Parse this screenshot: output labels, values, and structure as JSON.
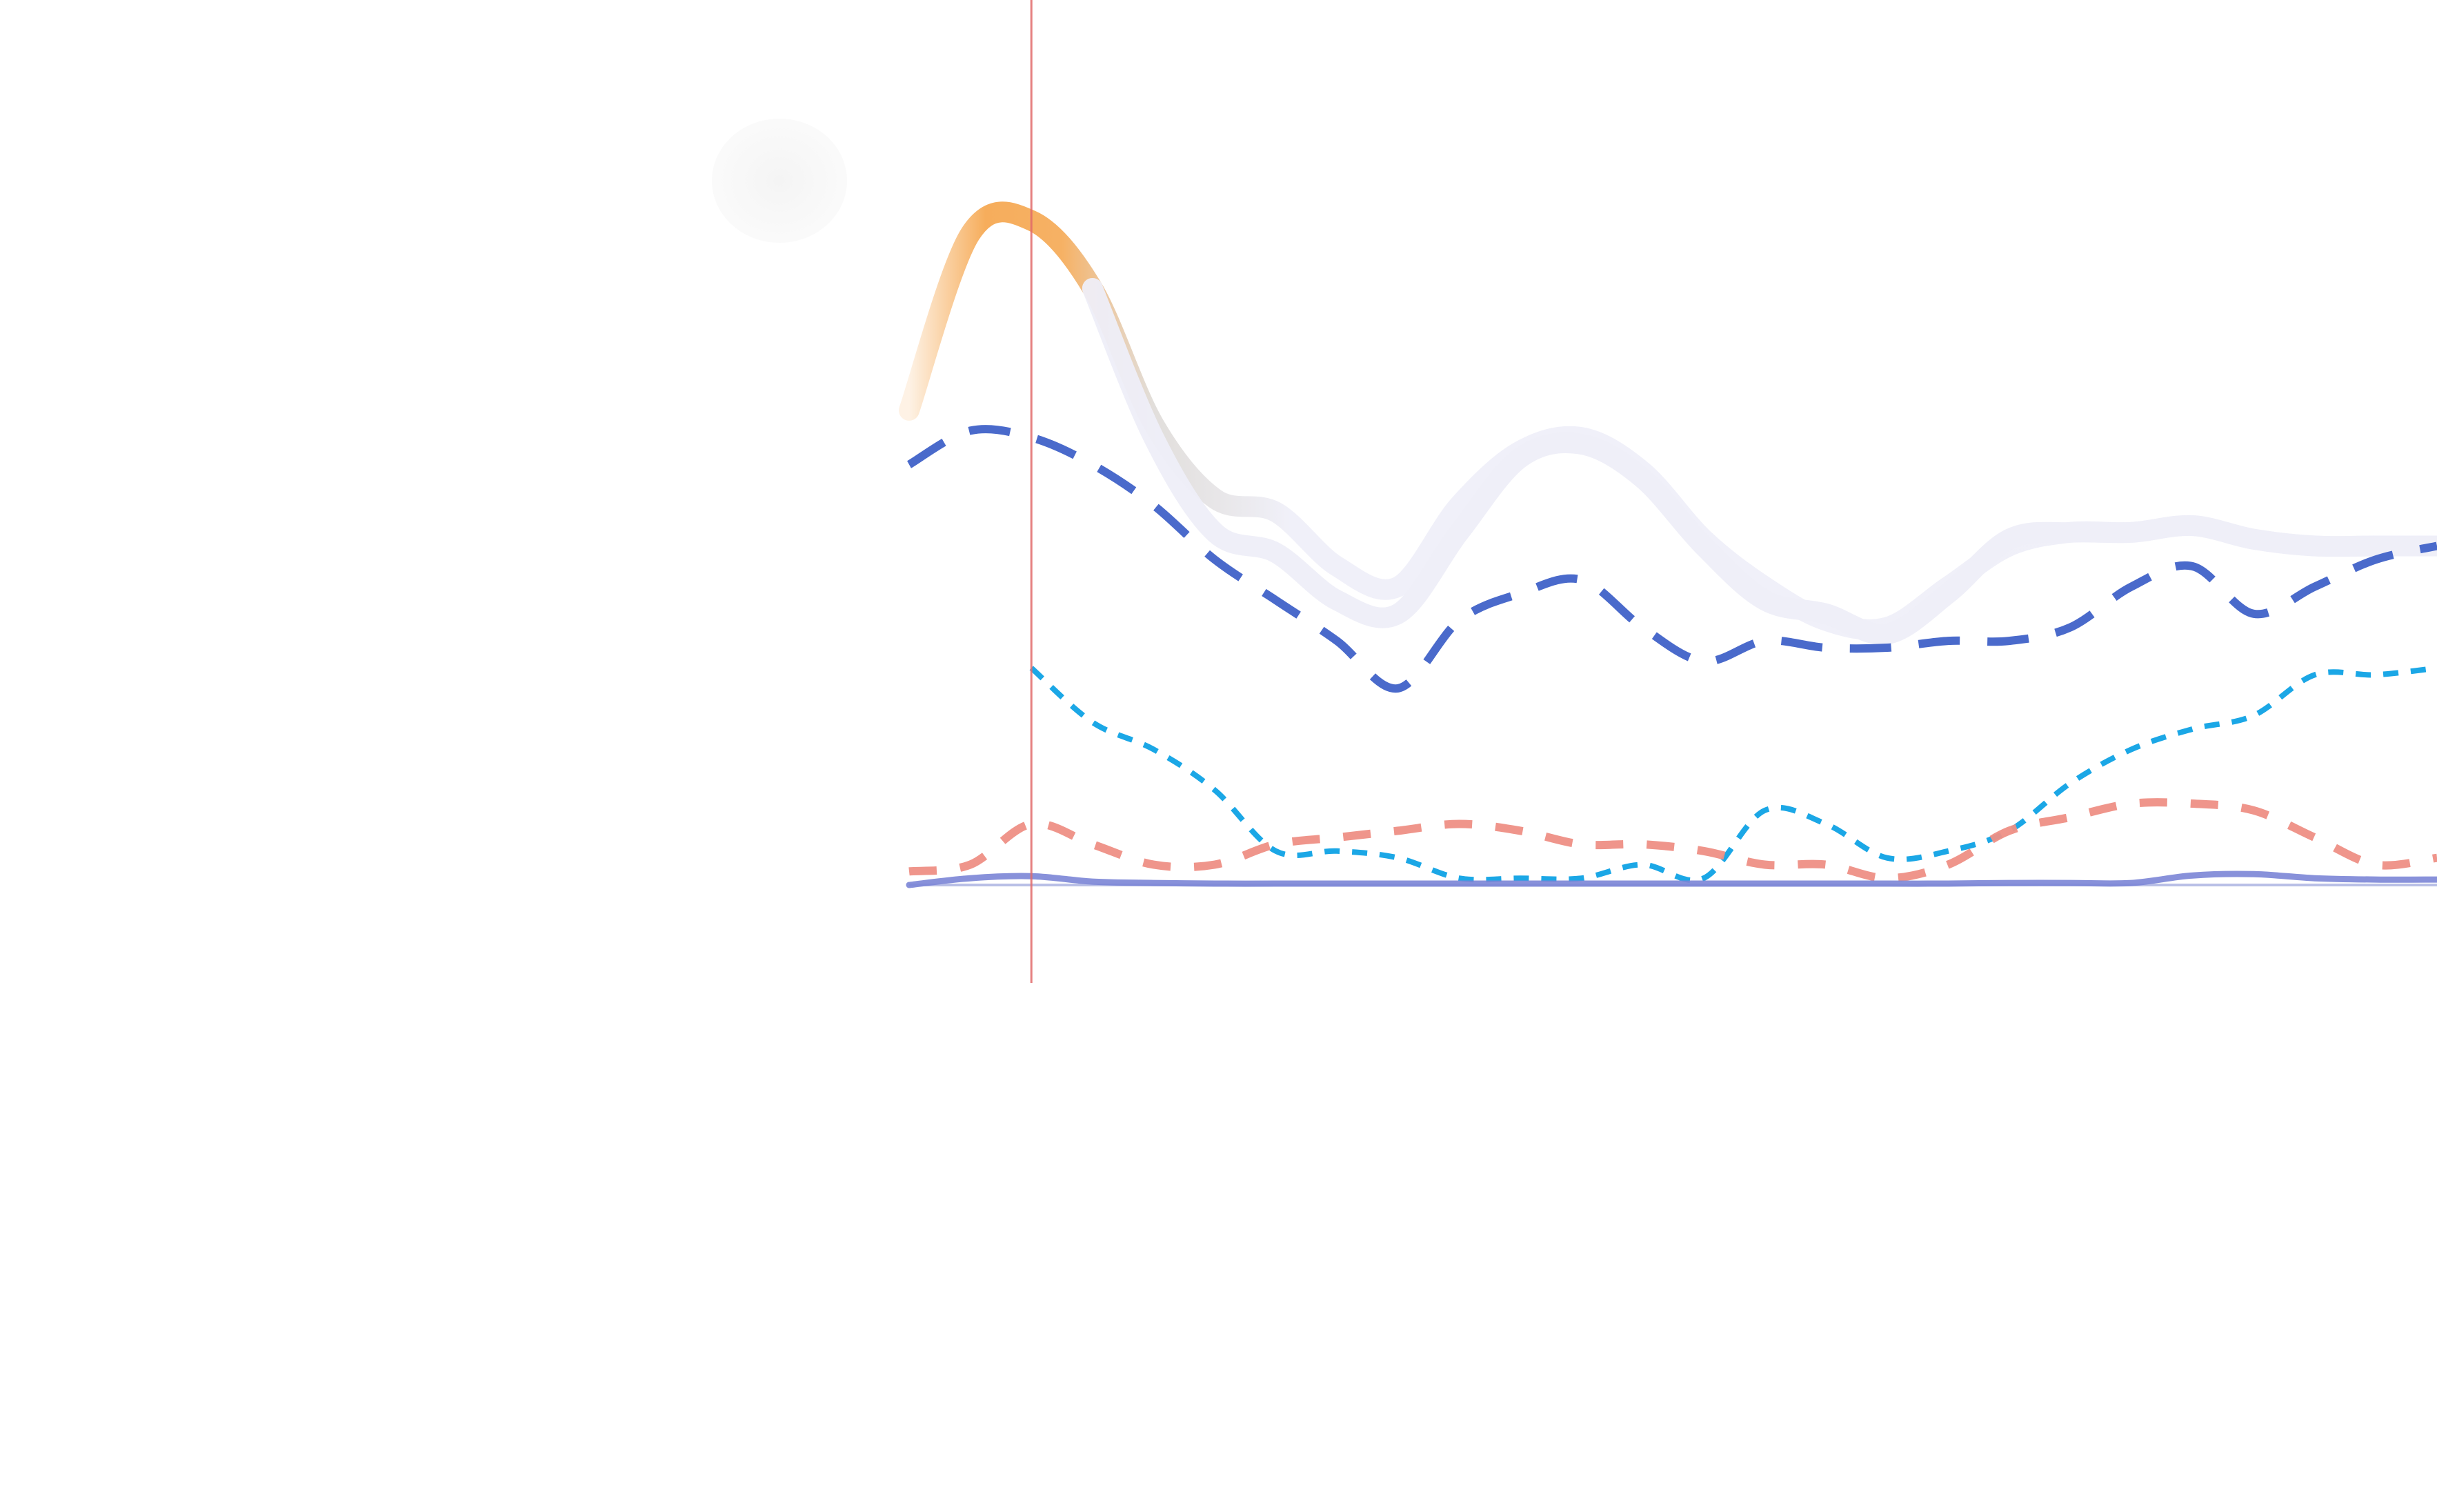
{
  "chart_data": {
    "type": "line",
    "title": "",
    "xlabel": "",
    "ylabel": "",
    "x": [
      0,
      1,
      2,
      3,
      4,
      5,
      6,
      7,
      8,
      9,
      10,
      11,
      12,
      13,
      14,
      15,
      16,
      17,
      18,
      19,
      20,
      21,
      22,
      23,
      24,
      25
    ],
    "xlim": [
      0,
      25
    ],
    "ylim": [
      0,
      100
    ],
    "grid": false,
    "legend": "none",
    "marker_x": 2,
    "series": [
      {
        "color": "#f5a44a",
        "fade_to": "#eeeef8",
        "style": "solid-thick",
        "values": [
          70,
          96,
          98,
          88,
          68,
          57,
          55,
          47,
          44,
          56,
          64,
          66,
          61,
          51,
          44,
          39,
          38,
          44,
          50,
          52,
          52,
          53,
          51,
          50,
          50,
          50
        ]
      },
      {
        "color": "#eeeef8",
        "style": "solid-thick",
        "values": [
          null,
          null,
          null,
          88,
          66,
          52,
          49,
          42,
          40,
          52,
          63,
          65,
          60,
          50,
          42,
          40,
          37,
          43,
          51,
          52,
          52,
          53,
          51,
          50,
          50,
          50
        ]
      },
      {
        "color": "#4a6acb",
        "style": "long-dash",
        "values": [
          62,
          67,
          66,
          62,
          56,
          48,
          42,
          36,
          29,
          39,
          43,
          45,
          38,
          33,
          36,
          35,
          35,
          36,
          36,
          38,
          44,
          47,
          40,
          44,
          48,
          50
        ]
      },
      {
        "color": "#1ba7e6",
        "style": "short-dash",
        "values": [
          null,
          null,
          32,
          24,
          20,
          14,
          5,
          5,
          4,
          1,
          1,
          1,
          3,
          1,
          11,
          9,
          4,
          5,
          8,
          15,
          20,
          23,
          25,
          31,
          31,
          32
        ]
      },
      {
        "color": "#ee8f85",
        "style": "medium-dash",
        "values": [
          2,
          3,
          9,
          6,
          3,
          3,
          6,
          7,
          8,
          9,
          8,
          6,
          6,
          5,
          3,
          3,
          1,
          3,
          8,
          10,
          12,
          12,
          11,
          7,
          3,
          4
        ]
      },
      {
        "color": "#7b85d6",
        "style": "solid-thin",
        "values": [
          0,
          1,
          1.3,
          0.5,
          0.3,
          0.2,
          0.2,
          0.2,
          0.2,
          0.2,
          0.2,
          0.2,
          0.2,
          0.2,
          0.2,
          0.2,
          0.2,
          0.2,
          0.3,
          0.3,
          0.3,
          1.4,
          1.6,
          1.0,
          0.8,
          0.8
        ]
      }
    ]
  }
}
